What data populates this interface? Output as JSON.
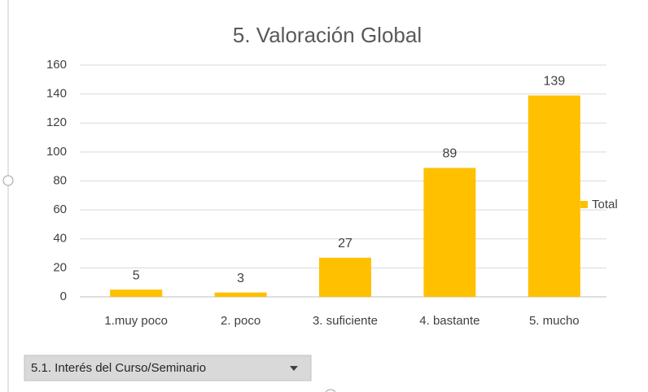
{
  "chart_data": {
    "type": "bar",
    "title": "5. Valoración Global",
    "categories": [
      "1.muy poco",
      "2. poco",
      "3. suficiente",
      "4. bastante",
      "5. mucho"
    ],
    "series": [
      {
        "name": "Total",
        "color": "#ffc000",
        "values": [
          5,
          3,
          27,
          89,
          139
        ]
      }
    ],
    "ylim": [
      0,
      160
    ],
    "yticks": [
      0,
      20,
      40,
      60,
      80,
      100,
      120,
      140,
      160
    ],
    "grid": true,
    "legend": "right"
  },
  "pivot_field": "5.1. Interés del Curso/Seminario"
}
